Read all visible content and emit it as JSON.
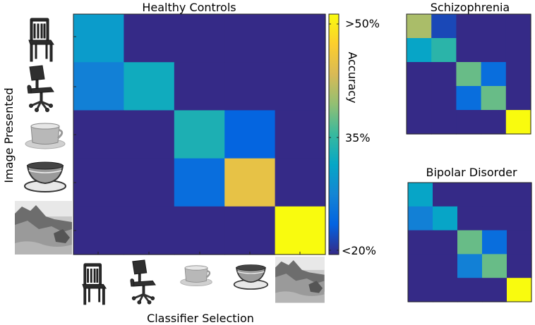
{
  "chart_data": [
    {
      "type": "heatmap",
      "title": "Healthy Controls",
      "xlabel": "Classifier Selection",
      "ylabel": "Image Presented",
      "rows": [
        "dining chair",
        "office chair",
        "mug",
        "teacup",
        "coastal scene"
      ],
      "cols": [
        "dining chair",
        "office chair",
        "mug",
        "teacup",
        "coastal scene"
      ],
      "values": [
        [
          0.3,
          0.2,
          0.2,
          0.2,
          0.2
        ],
        [
          0.27,
          0.32,
          0.2,
          0.2,
          0.2
        ],
        [
          0.2,
          0.2,
          0.33,
          0.24,
          0.2
        ],
        [
          0.2,
          0.2,
          0.25,
          0.44,
          0.2
        ],
        [
          0.2,
          0.2,
          0.2,
          0.2,
          0.5
        ]
      ]
    },
    {
      "type": "heatmap",
      "title": "Schizophrenia",
      "values": [
        [
          0.4,
          0.22,
          0.2,
          0.2,
          0.2
        ],
        [
          0.31,
          0.34,
          0.2,
          0.2,
          0.2
        ],
        [
          0.2,
          0.2,
          0.37,
          0.25,
          0.2
        ],
        [
          0.2,
          0.2,
          0.25,
          0.37,
          0.2
        ],
        [
          0.2,
          0.2,
          0.2,
          0.2,
          0.5
        ]
      ]
    },
    {
      "type": "heatmap",
      "title": "Bipolar Disorder",
      "values": [
        [
          0.31,
          0.2,
          0.2,
          0.2,
          0.2
        ],
        [
          0.27,
          0.31,
          0.2,
          0.2,
          0.2
        ],
        [
          0.2,
          0.2,
          0.37,
          0.25,
          0.2
        ],
        [
          0.2,
          0.2,
          0.27,
          0.37,
          0.2
        ],
        [
          0.2,
          0.2,
          0.2,
          0.2,
          0.5
        ]
      ]
    }
  ],
  "colorbar": {
    "label": "Accuracy",
    "tick_labels": [
      ">50%",
      "35%",
      "<20%"
    ],
    "tick_values": [
      0.5,
      0.35,
      0.2
    ],
    "range": [
      0.2,
      0.5
    ],
    "colormap": "parula"
  },
  "colors": {
    "background": "#ffffff",
    "cell_low": "#352a87",
    "cell_high": "#f9fb0e"
  }
}
